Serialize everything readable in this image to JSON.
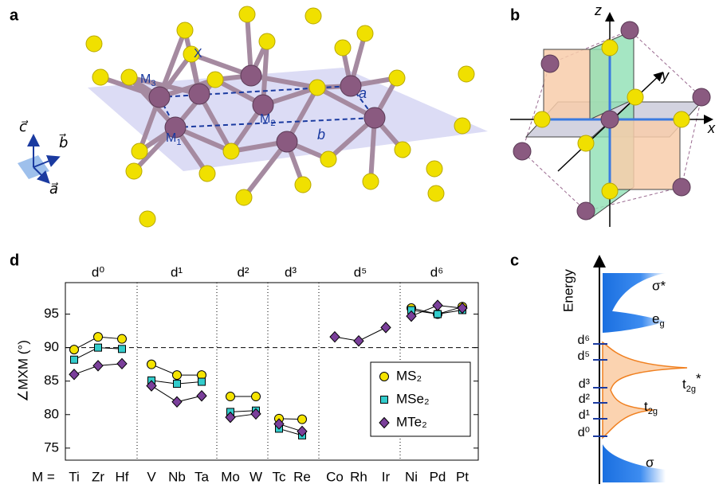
{
  "panels": {
    "a": {
      "label": "a",
      "atoms": {
        "X": "X",
        "M1": {
          "base": "M",
          "sub": "1"
        },
        "M2": {
          "base": "M",
          "sub": "2"
        },
        "M3": {
          "base": "M",
          "sub": "3"
        }
      },
      "lattice": {
        "a": "a",
        "b": "b"
      },
      "vectors": {
        "c": "c⃗",
        "b": "b⃗",
        "a": "a⃗"
      }
    },
    "b": {
      "label": "b",
      "axes": {
        "z": "z",
        "y": "y",
        "x": "x"
      }
    },
    "c": {
      "label": "c",
      "axis_label": "Energy",
      "bands": {
        "sigma_star": "σ*",
        "eg": {
          "base": "e",
          "sub": "g"
        },
        "t2g_star": {
          "base": "t",
          "sub": "2g",
          "sup": "*"
        },
        "t2g": {
          "base": "t",
          "sub": "2g"
        },
        "sigma": "σ"
      },
      "levels": [
        "d⁶",
        "d⁵",
        "d³",
        "d²",
        "d¹",
        "d⁰"
      ]
    },
    "d": {
      "label": "d",
      "x_prefix": "M ="
    }
  },
  "chart_data": {
    "type": "line",
    "ylabel": "∠MXM (°)",
    "categories": [
      "Ti",
      "Zr",
      "Hf",
      "V",
      "Nb",
      "Ta",
      "Mo",
      "W",
      "Tc",
      "Re",
      "Co",
      "Rh",
      "Ir",
      "Ni",
      "Pd",
      "Pt"
    ],
    "groups": [
      {
        "label": "d⁰",
        "size": 3
      },
      {
        "label": "d¹",
        "size": 3
      },
      {
        "label": "d²",
        "size": 2
      },
      {
        "label": "d³",
        "size": 2
      },
      {
        "label": "d⁵",
        "size": 3
      },
      {
        "label": "d⁶",
        "size": 3
      }
    ],
    "series": [
      {
        "name": "MS₂",
        "color": "#f5e400",
        "marker": "circle",
        "values": [
          89.7,
          91.6,
          91.3,
          87.5,
          85.9,
          85.9,
          82.7,
          82.7,
          79.4,
          79.3,
          null,
          null,
          null,
          95.9,
          95.0,
          96.1
        ]
      },
      {
        "name": "MSe₂",
        "color": "#33cccc",
        "marker": "square",
        "values": [
          88.2,
          90.0,
          89.8,
          85.1,
          84.6,
          84.9,
          80.4,
          80.6,
          77.9,
          76.9,
          null,
          null,
          null,
          95.6,
          95.0,
          95.6
        ]
      },
      {
        "name": "MTe₂",
        "color": "#7a3f9a",
        "marker": "diamond",
        "values": [
          86.0,
          87.3,
          87.6,
          84.3,
          81.9,
          82.8,
          79.6,
          80.1,
          78.6,
          77.5,
          91.6,
          91.0,
          93.0,
          94.7,
          96.3,
          95.9
        ]
      }
    ],
    "ylim": [
      73.2,
      99.7
    ],
    "yticks": [
      75,
      80,
      85,
      90,
      95
    ],
    "hline": 90,
    "grid": false
  }
}
